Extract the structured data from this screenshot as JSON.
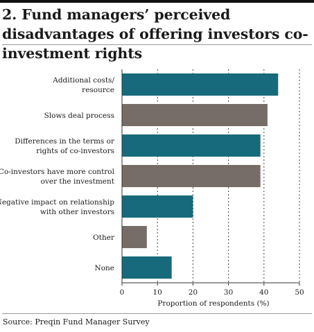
{
  "title": "2. Fund managers’ perceived disadvantages of offering investors co-investment rights",
  "source": "Source: Preqin Fund Manager Survey",
  "colors": {
    "teal": "#176a7b",
    "taupe": "#776d68"
  },
  "chart_data": {
    "type": "bar",
    "orientation": "horizontal",
    "title": "2. Fund managers’ perceived disadvantages of offering investors co-investment rights",
    "xlabel": "Proportion of respondents (%)",
    "ylabel": "",
    "xlim": [
      0,
      50
    ],
    "xticks": [
      0,
      10,
      20,
      30,
      40,
      50
    ],
    "grid": "vertical dashed",
    "categories": [
      [
        "Additional costs/",
        "resource"
      ],
      [
        "Slows deal process"
      ],
      [
        "Differences in the terms or",
        "rights of co-investors"
      ],
      [
        "Co-investors have more control",
        "over the investment"
      ],
      [
        "Negative impact on  relationship",
        "with other investors"
      ],
      [
        "Other"
      ],
      [
        "None"
      ]
    ],
    "values": [
      44,
      41,
      39,
      39,
      20,
      7,
      14
    ],
    "bar_colors": [
      "teal",
      "taupe",
      "teal",
      "taupe",
      "teal",
      "taupe",
      "teal"
    ]
  }
}
